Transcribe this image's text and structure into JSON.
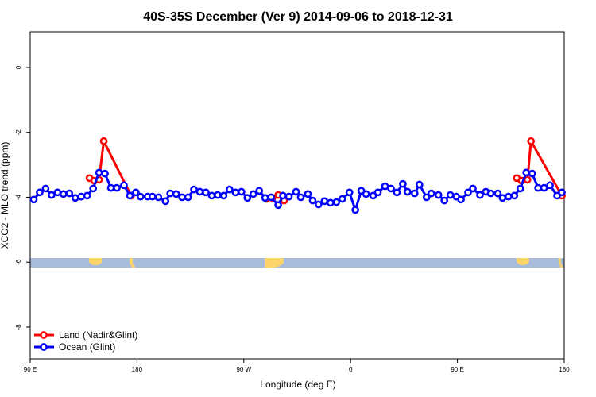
{
  "chart_data": {
    "type": "line",
    "title": "40S-35S December (Ver 9)   2014-09-06 to 2018-12-31",
    "x_label": "Longitude (deg E)",
    "y_label": "XCO2 - MLO trend (ppm)",
    "xlim": [
      90,
      540
    ],
    "xticks": [
      {
        "value": 90,
        "label": "90 E"
      },
      {
        "value": 180,
        "label": "180"
      },
      {
        "value": 270,
        "label": "90 W"
      },
      {
        "value": 360,
        "label": "0"
      },
      {
        "value": 450,
        "label": "90 E"
      },
      {
        "value": 540,
        "label": "180"
      }
    ],
    "ylim": [
      -8.98,
      1.1
    ],
    "yticks": [
      0,
      -2,
      -4,
      -6,
      -8
    ],
    "legend": "bottom-left",
    "series": [
      {
        "name": "Land (Nadir&Glint)",
        "color": "#ff0000",
        "x": [
          140,
          144,
          148,
          152,
          175,
          null,
          289,
          294,
          299,
          304,
          null,
          500,
          504,
          509,
          512,
          538
        ],
        "values": [
          -3.41,
          -3.49,
          -3.46,
          -2.27,
          -3.95,
          null,
          -4.05,
          -4.02,
          -3.93,
          -4.1,
          null,
          -3.41,
          -3.49,
          -3.46,
          -2.27,
          -3.95
        ]
      },
      {
        "name": "Ocean (Glint)",
        "color": "#0000ff",
        "x": [
          93,
          98,
          103,
          108,
          113,
          118,
          123,
          128,
          133,
          138,
          143,
          148,
          153,
          158,
          163,
          169,
          174,
          179,
          183,
          189,
          193,
          198,
          204,
          208,
          213,
          218,
          223,
          228,
          233,
          238,
          243,
          248,
          253,
          258,
          263,
          268,
          273,
          278,
          283,
          288,
          293,
          299,
          303,
          308,
          314,
          318,
          324,
          328,
          333,
          338,
          343,
          348,
          353,
          359,
          364,
          369,
          373,
          379,
          383,
          389,
          394,
          399,
          404,
          408,
          414,
          418,
          424,
          428,
          434,
          439,
          444,
          449,
          453,
          459,
          463,
          469,
          474,
          478,
          484,
          488,
          493,
          498,
          503,
          508,
          513,
          518,
          523,
          528,
          534,
          538
        ],
        "values": [
          -4.07,
          -3.85,
          -3.73,
          -3.93,
          -3.85,
          -3.9,
          -3.88,
          -4.02,
          -3.98,
          -3.95,
          -3.73,
          -3.24,
          -3.27,
          -3.71,
          -3.71,
          -3.63,
          -3.95,
          -3.85,
          -3.98,
          -3.98,
          -3.98,
          -4.0,
          -4.12,
          -3.88,
          -3.9,
          -4.0,
          -4.0,
          -3.76,
          -3.83,
          -3.85,
          -3.95,
          -3.93,
          -3.95,
          -3.76,
          -3.85,
          -3.83,
          -4.02,
          -3.9,
          -3.8,
          -4.02,
          -4.0,
          -4.24,
          -3.95,
          -3.98,
          -3.83,
          -4.0,
          -3.9,
          -4.1,
          -4.22,
          -4.12,
          -4.17,
          -4.15,
          -4.05,
          -3.85,
          -4.39,
          -3.8,
          -3.9,
          -3.95,
          -3.85,
          -3.66,
          -3.73,
          -3.85,
          -3.59,
          -3.83,
          -3.88,
          -3.61,
          -4.0,
          -3.88,
          -3.93,
          -4.1,
          -3.93,
          -3.98,
          -4.07,
          -3.85,
          -3.73,
          -3.93,
          -3.83,
          -3.88,
          -3.88,
          -4.02,
          -3.98,
          -3.95,
          -3.73,
          -3.24,
          -3.27,
          -3.71,
          -3.71,
          -3.63,
          -3.95,
          -3.85
        ]
      }
    ]
  }
}
